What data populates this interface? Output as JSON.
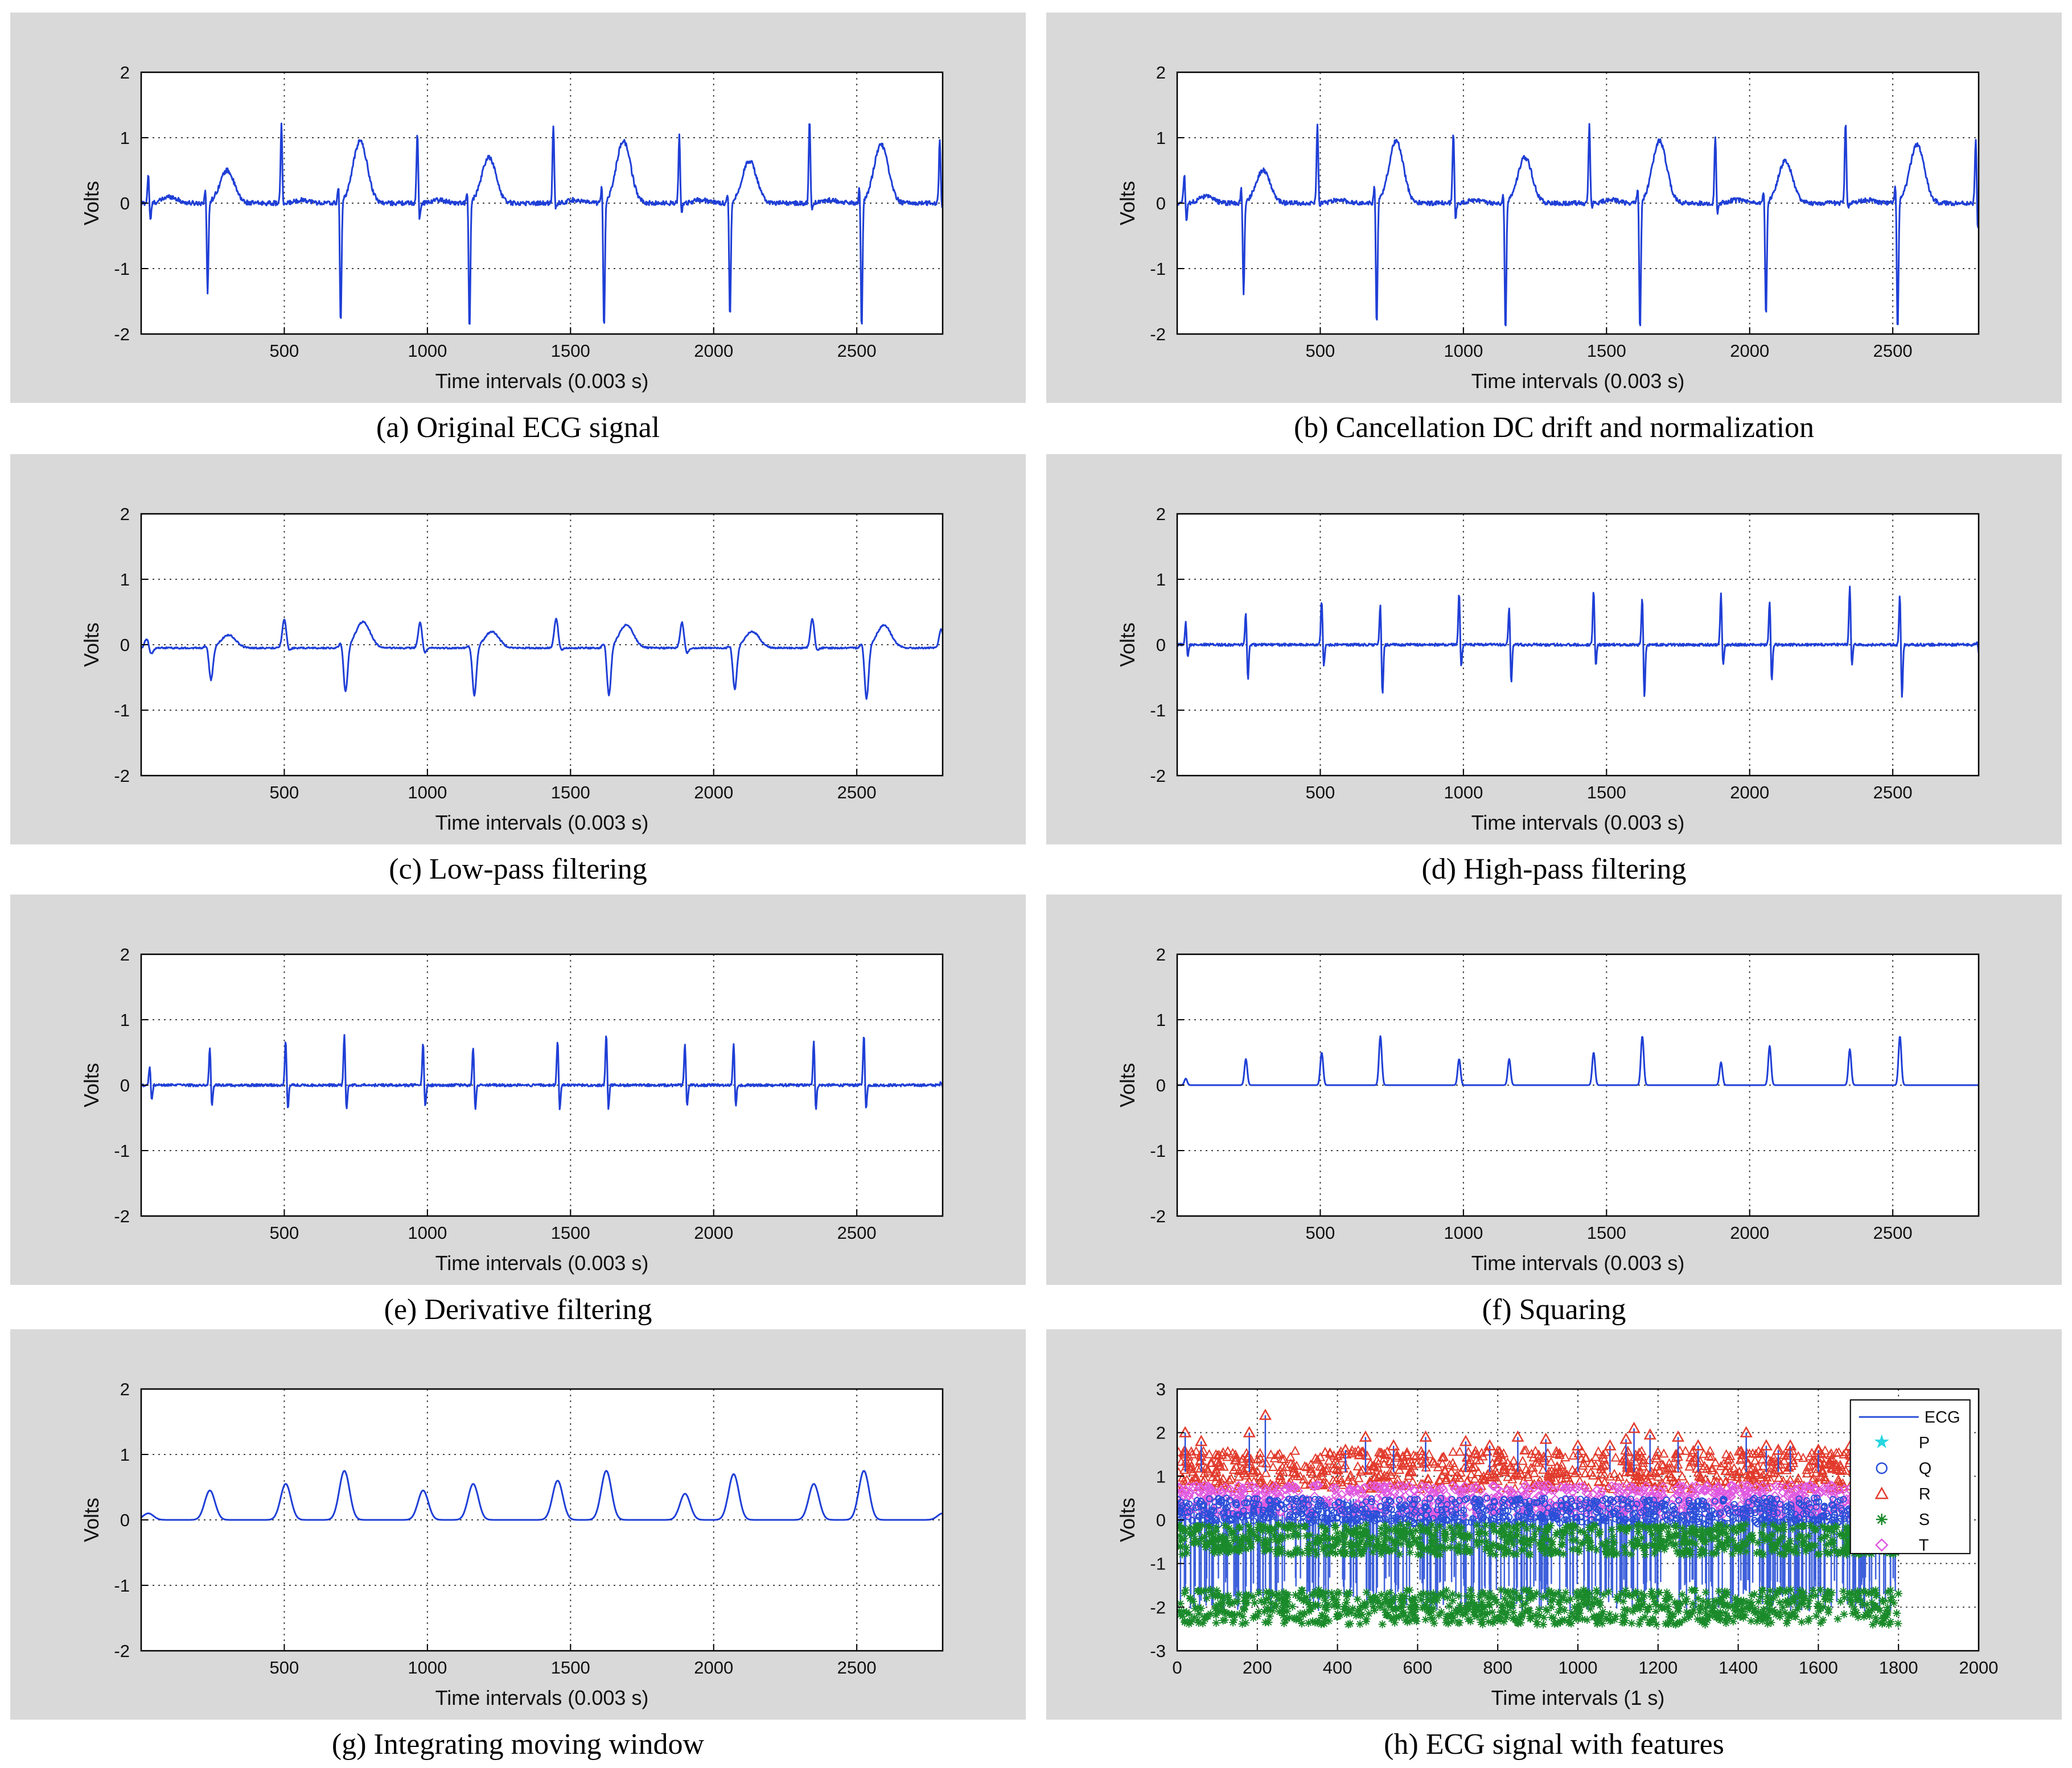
{
  "chart_data": [
    {
      "id": "a",
      "type": "line",
      "caption": "(a) Original ECG signal",
      "xlabel": "Time intervals (0.003 s)",
      "ylabel": "Volts",
      "xlim": [
        0,
        2800
      ],
      "ylim": [
        -2,
        2
      ],
      "xticks": [
        500,
        1000,
        1500,
        2000,
        2500
      ],
      "yticks": [
        -2,
        -1,
        0,
        1,
        2
      ],
      "grid": true,
      "baseline": 0.0,
      "series_color": "#1f3fd6",
      "beats": [
        {
          "x": 25,
          "r": 0.45,
          "s": -0.3,
          "t": 0.1
        },
        {
          "x": 225,
          "r": 0.25,
          "s": -1.4,
          "t": 0.5
        },
        {
          "x": 490,
          "r": 1.2,
          "s": -0.1,
          "t": 0.05
        },
        {
          "x": 690,
          "r": 0.3,
          "s": -1.9,
          "t": 0.95
        },
        {
          "x": 965,
          "r": 1.1,
          "s": -0.3,
          "t": 0.05
        },
        {
          "x": 1140,
          "r": 0.2,
          "s": -2.0,
          "t": 0.7
        },
        {
          "x": 1440,
          "r": 1.2,
          "s": -0.1,
          "t": 0.05
        },
        {
          "x": 1610,
          "r": 0.3,
          "s": -2.0,
          "t": 0.95
        },
        {
          "x": 1880,
          "r": 1.05,
          "s": -0.2,
          "t": 0.05
        },
        {
          "x": 2050,
          "r": 0.2,
          "s": -1.8,
          "t": 0.65
        },
        {
          "x": 2335,
          "r": 1.25,
          "s": -0.1,
          "t": 0.05
        },
        {
          "x": 2510,
          "r": 0.3,
          "s": -2.0,
          "t": 0.9
        },
        {
          "x": 2790,
          "r": 1.0,
          "s": -0.1,
          "t": 0.0
        }
      ]
    },
    {
      "id": "b",
      "type": "line",
      "caption": "(b) Cancellation DC drift and normalization",
      "xlabel": "Time intervals (0.003 s)",
      "ylabel": "Volts",
      "xlim": [
        0,
        2800
      ],
      "ylim": [
        -2,
        2
      ],
      "xticks": [
        500,
        1000,
        1500,
        2000,
        2500
      ],
      "yticks": [
        -2,
        -1,
        0,
        1,
        2
      ],
      "grid": true,
      "baseline": 0.0,
      "series_color": "#1f3fd6",
      "beats": [
        {
          "x": 25,
          "r": 0.45,
          "s": -0.3,
          "t": 0.1
        },
        {
          "x": 225,
          "r": 0.25,
          "s": -1.4,
          "t": 0.5
        },
        {
          "x": 490,
          "r": 1.2,
          "s": -0.1,
          "t": 0.05
        },
        {
          "x": 690,
          "r": 0.3,
          "s": -1.9,
          "t": 0.95
        },
        {
          "x": 965,
          "r": 1.1,
          "s": -0.3,
          "t": 0.05
        },
        {
          "x": 1140,
          "r": 0.2,
          "s": -2.0,
          "t": 0.7
        },
        {
          "x": 1440,
          "r": 1.2,
          "s": -0.1,
          "t": 0.05
        },
        {
          "x": 1610,
          "r": 0.3,
          "s": -2.0,
          "t": 0.95
        },
        {
          "x": 1880,
          "r": 1.05,
          "s": -0.2,
          "t": 0.05
        },
        {
          "x": 2050,
          "r": 0.2,
          "s": -1.8,
          "t": 0.65
        },
        {
          "x": 2335,
          "r": 1.25,
          "s": -0.1,
          "t": 0.05
        },
        {
          "x": 2510,
          "r": 0.3,
          "s": -2.0,
          "t": 0.9
        },
        {
          "x": 2790,
          "r": 1.0,
          "s": -0.45,
          "t": 0.0
        }
      ]
    },
    {
      "id": "c",
      "type": "line",
      "caption": "(c) Low-pass filtering",
      "xlabel": "Time intervals (0.003 s)",
      "ylabel": "Volts",
      "xlim": [
        0,
        2800
      ],
      "ylim": [
        -2,
        2
      ],
      "xticks": [
        500,
        1000,
        1500,
        2000,
        2500
      ],
      "yticks": [
        -2,
        -1,
        0,
        1,
        2
      ],
      "grid": true,
      "baseline": -0.05,
      "series_color": "#1f3fd6",
      "beats": [
        {
          "x": 20,
          "r": 0.15,
          "s": -0.1,
          "t": 0.0
        },
        {
          "x": 230,
          "r": 0.05,
          "s": -0.5,
          "t": 0.2
        },
        {
          "x": 500,
          "r": 0.45,
          "s": -0.05,
          "t": 0.0
        },
        {
          "x": 700,
          "r": 0.1,
          "s": -0.7,
          "t": 0.4
        },
        {
          "x": 975,
          "r": 0.4,
          "s": -0.1,
          "t": 0.0
        },
        {
          "x": 1150,
          "r": 0.05,
          "s": -0.75,
          "t": 0.25
        },
        {
          "x": 1450,
          "r": 0.45,
          "s": -0.05,
          "t": 0.0
        },
        {
          "x": 1620,
          "r": 0.1,
          "s": -0.75,
          "t": 0.35
        },
        {
          "x": 1890,
          "r": 0.4,
          "s": -0.1,
          "t": 0.0
        },
        {
          "x": 2060,
          "r": 0.05,
          "s": -0.65,
          "t": 0.25
        },
        {
          "x": 2345,
          "r": 0.45,
          "s": -0.05,
          "t": 0.0
        },
        {
          "x": 2520,
          "r": 0.1,
          "s": -0.8,
          "t": 0.35
        },
        {
          "x": 2795,
          "r": 0.3,
          "s": -0.05,
          "t": 0.0
        }
      ]
    },
    {
      "id": "d",
      "type": "line",
      "caption": "(d) High-pass filtering",
      "xlabel": "Time intervals (0.003 s)",
      "ylabel": "Volts",
      "xlim": [
        0,
        2800
      ],
      "ylim": [
        -2,
        2
      ],
      "xticks": [
        500,
        1000,
        1500,
        2000,
        2500
      ],
      "yticks": [
        -2,
        -1,
        0,
        1,
        2
      ],
      "grid": true,
      "baseline": 0.0,
      "series_color": "#1f3fd6",
      "beats": [
        {
          "x": 30,
          "r": 0.35,
          "s": -0.2,
          "t": 0.0
        },
        {
          "x": 240,
          "r": 0.5,
          "s": -0.55,
          "t": 0.0
        },
        {
          "x": 505,
          "r": 0.7,
          "s": -0.35,
          "t": 0.0
        },
        {
          "x": 710,
          "r": 0.65,
          "s": -0.8,
          "t": 0.0
        },
        {
          "x": 985,
          "r": 0.8,
          "s": -0.35,
          "t": 0.0
        },
        {
          "x": 1160,
          "r": 0.6,
          "s": -0.6,
          "t": 0.0
        },
        {
          "x": 1455,
          "r": 0.85,
          "s": -0.35,
          "t": 0.0
        },
        {
          "x": 1625,
          "r": 0.75,
          "s": -0.85,
          "t": 0.0
        },
        {
          "x": 1900,
          "r": 0.8,
          "s": -0.35,
          "t": 0.0
        },
        {
          "x": 2070,
          "r": 0.7,
          "s": -0.6,
          "t": 0.0
        },
        {
          "x": 2350,
          "r": 0.9,
          "s": -0.35,
          "t": 0.0
        },
        {
          "x": 2525,
          "r": 0.8,
          "s": -0.85,
          "t": 0.0
        },
        {
          "x": 2795,
          "r": 0.05,
          "s": -0.15,
          "t": 0.0
        }
      ]
    },
    {
      "id": "e",
      "type": "line",
      "caption": "(e) Derivative filtering",
      "xlabel": "Time intervals (0.003 s)",
      "ylabel": "Volts",
      "xlim": [
        0,
        2800
      ],
      "ylim": [
        -2,
        2
      ],
      "xticks": [
        500,
        1000,
        1500,
        2000,
        2500
      ],
      "yticks": [
        -2,
        -1,
        0,
        1,
        2
      ],
      "grid": true,
      "baseline": 0.0,
      "series_color": "#1f3fd6",
      "beats": [
        {
          "x": 30,
          "r": 0.3,
          "s": -0.25,
          "t": 0.0
        },
        {
          "x": 240,
          "r": 0.6,
          "s": -0.35,
          "t": 0.0
        },
        {
          "x": 505,
          "r": 0.7,
          "s": -0.4,
          "t": 0.0
        },
        {
          "x": 710,
          "r": 0.8,
          "s": -0.4,
          "t": 0.0
        },
        {
          "x": 985,
          "r": 0.65,
          "s": -0.35,
          "t": 0.0
        },
        {
          "x": 1160,
          "r": 0.6,
          "s": -0.4,
          "t": 0.0
        },
        {
          "x": 1455,
          "r": 0.7,
          "s": -0.4,
          "t": 0.0
        },
        {
          "x": 1625,
          "r": 0.8,
          "s": -0.4,
          "t": 0.0
        },
        {
          "x": 1900,
          "r": 0.65,
          "s": -0.35,
          "t": 0.0
        },
        {
          "x": 2070,
          "r": 0.65,
          "s": -0.35,
          "t": 0.0
        },
        {
          "x": 2350,
          "r": 0.7,
          "s": -0.4,
          "t": 0.0
        },
        {
          "x": 2525,
          "r": 0.8,
          "s": -0.4,
          "t": 0.0
        },
        {
          "x": 2795,
          "r": 0.05,
          "s": -0.05,
          "t": 0.0
        }
      ]
    },
    {
      "id": "f",
      "type": "line",
      "caption": "(f) Squaring",
      "xlabel": "Time intervals (0.003 s)",
      "ylabel": "Volts",
      "xlim": [
        0,
        2800
      ],
      "ylim": [
        -2,
        2
      ],
      "xticks": [
        500,
        1000,
        1500,
        2000,
        2500
      ],
      "yticks": [
        -2,
        -1,
        0,
        1,
        2
      ],
      "grid": true,
      "baseline": 0.0,
      "series_color": "#1f3fd6",
      "beats": [
        {
          "x": 30,
          "r": 0.1,
          "s": 0.0,
          "t": 0.0
        },
        {
          "x": 240,
          "r": 0.4,
          "s": 0.0,
          "t": 0.0
        },
        {
          "x": 505,
          "r": 0.5,
          "s": 0.0,
          "t": 0.0
        },
        {
          "x": 710,
          "r": 0.75,
          "s": 0.0,
          "t": 0.0
        },
        {
          "x": 985,
          "r": 0.4,
          "s": 0.0,
          "t": 0.0
        },
        {
          "x": 1160,
          "r": 0.4,
          "s": 0.0,
          "t": 0.0
        },
        {
          "x": 1455,
          "r": 0.5,
          "s": 0.0,
          "t": 0.0
        },
        {
          "x": 1625,
          "r": 0.75,
          "s": 0.0,
          "t": 0.0
        },
        {
          "x": 1900,
          "r": 0.35,
          "s": 0.0,
          "t": 0.0
        },
        {
          "x": 2070,
          "r": 0.6,
          "s": 0.0,
          "t": 0.0
        },
        {
          "x": 2350,
          "r": 0.55,
          "s": 0.0,
          "t": 0.0
        },
        {
          "x": 2525,
          "r": 0.75,
          "s": 0.0,
          "t": 0.0
        }
      ]
    },
    {
      "id": "g",
      "type": "line",
      "caption": "(g) Integrating moving window",
      "xlabel": "Time intervals (0.003 s)",
      "ylabel": "Volts",
      "xlim": [
        0,
        2800
      ],
      "ylim": [
        -2,
        2
      ],
      "xticks": [
        500,
        1000,
        1500,
        2000,
        2500
      ],
      "yticks": [
        -2,
        -1,
        0,
        1,
        2
      ],
      "grid": true,
      "baseline": 0.0,
      "series_color": "#1f3fd6",
      "beats": [
        {
          "x": 25,
          "r": 0.1,
          "s": 0.0,
          "t": 0.0
        },
        {
          "x": 240,
          "r": 0.45,
          "s": 0.0,
          "t": 0.0
        },
        {
          "x": 505,
          "r": 0.55,
          "s": 0.0,
          "t": 0.0
        },
        {
          "x": 710,
          "r": 0.75,
          "s": 0.0,
          "t": 0.0
        },
        {
          "x": 985,
          "r": 0.45,
          "s": 0.0,
          "t": 0.0
        },
        {
          "x": 1160,
          "r": 0.55,
          "s": 0.0,
          "t": 0.0
        },
        {
          "x": 1455,
          "r": 0.6,
          "s": 0.0,
          "t": 0.0
        },
        {
          "x": 1625,
          "r": 0.75,
          "s": 0.0,
          "t": 0.0
        },
        {
          "x": 1900,
          "r": 0.4,
          "s": 0.0,
          "t": 0.0
        },
        {
          "x": 2070,
          "r": 0.7,
          "s": 0.0,
          "t": 0.0
        },
        {
          "x": 2350,
          "r": 0.55,
          "s": 0.0,
          "t": 0.0
        },
        {
          "x": 2525,
          "r": 0.75,
          "s": 0.0,
          "t": 0.0
        },
        {
          "x": 2800,
          "r": 0.1,
          "s": 0.0,
          "t": 0.0
        }
      ]
    },
    {
      "id": "h",
      "type": "scatter",
      "caption": "(h) ECG signal with features",
      "xlabel": "Time intervals (1 s)",
      "ylabel": "Volts",
      "xlim": [
        0,
        2000
      ],
      "ylim": [
        -3,
        3
      ],
      "xticks": [
        0,
        200,
        400,
        600,
        800,
        1000,
        1200,
        1400,
        1600,
        1800,
        2000
      ],
      "yticks": [
        -3,
        -2,
        -1,
        0,
        1,
        2,
        3
      ],
      "grid": true,
      "legend": {
        "position": "top-right",
        "entries": [
          {
            "label": "ECG",
            "marker": "line",
            "color": "#2a4fd8"
          },
          {
            "label": "P",
            "marker": "star",
            "color": "#27d6e0"
          },
          {
            "label": "Q",
            "marker": "circle",
            "color": "#2a4fd8"
          },
          {
            "label": "R",
            "marker": "triangle",
            "color": "#e23a2c"
          },
          {
            "label": "S",
            "marker": "asterisk",
            "color": "#1a8a2a"
          },
          {
            "label": "T",
            "marker": "diamond",
            "color": "#e05ae0"
          }
        ]
      },
      "bands": [
        {
          "series": "R",
          "x_range": [
            0,
            1800
          ],
          "y_range": [
            0.7,
            1.6
          ],
          "color": "#e23a2c"
        },
        {
          "series": "T",
          "x_range": [
            0,
            1800
          ],
          "y_range": [
            0.1,
            0.8
          ],
          "color": "#e05ae0"
        },
        {
          "series": "Q",
          "x_range": [
            0,
            1800
          ],
          "y_range": [
            -0.1,
            0.5
          ],
          "color": "#2a4fd8"
        },
        {
          "series": "S",
          "x_range": [
            0,
            1800
          ],
          "y_range": [
            -0.8,
            -0.1
          ],
          "color": "#1a8a2a"
        },
        {
          "series": "S",
          "x_range": [
            0,
            1800
          ],
          "y_range": [
            -2.4,
            -1.6
          ],
          "color": "#1a8a2a"
        }
      ],
      "r_peaks": [
        {
          "x": 20,
          "y": 2.0
        },
        {
          "x": 60,
          "y": 1.8
        },
        {
          "x": 180,
          "y": 2.0
        },
        {
          "x": 220,
          "y": 2.4
        },
        {
          "x": 420,
          "y": 1.6
        },
        {
          "x": 470,
          "y": 1.9
        },
        {
          "x": 540,
          "y": 1.7
        },
        {
          "x": 620,
          "y": 1.9
        },
        {
          "x": 720,
          "y": 1.8
        },
        {
          "x": 780,
          "y": 1.7
        },
        {
          "x": 850,
          "y": 1.9
        },
        {
          "x": 920,
          "y": 1.85
        },
        {
          "x": 1000,
          "y": 1.7
        },
        {
          "x": 1080,
          "y": 1.7
        },
        {
          "x": 1120,
          "y": 1.85
        },
        {
          "x": 1140,
          "y": 2.1
        },
        {
          "x": 1180,
          "y": 1.95
        },
        {
          "x": 1250,
          "y": 1.9
        },
        {
          "x": 1300,
          "y": 1.7
        },
        {
          "x": 1420,
          "y": 2.0
        },
        {
          "x": 1470,
          "y": 1.7
        },
        {
          "x": 1500,
          "y": 1.6
        },
        {
          "x": 1530,
          "y": 1.7
        },
        {
          "x": 1600,
          "y": 1.6
        },
        {
          "x": 1680,
          "y": 1.7
        },
        {
          "x": 1760,
          "y": 1.75
        }
      ]
    }
  ]
}
